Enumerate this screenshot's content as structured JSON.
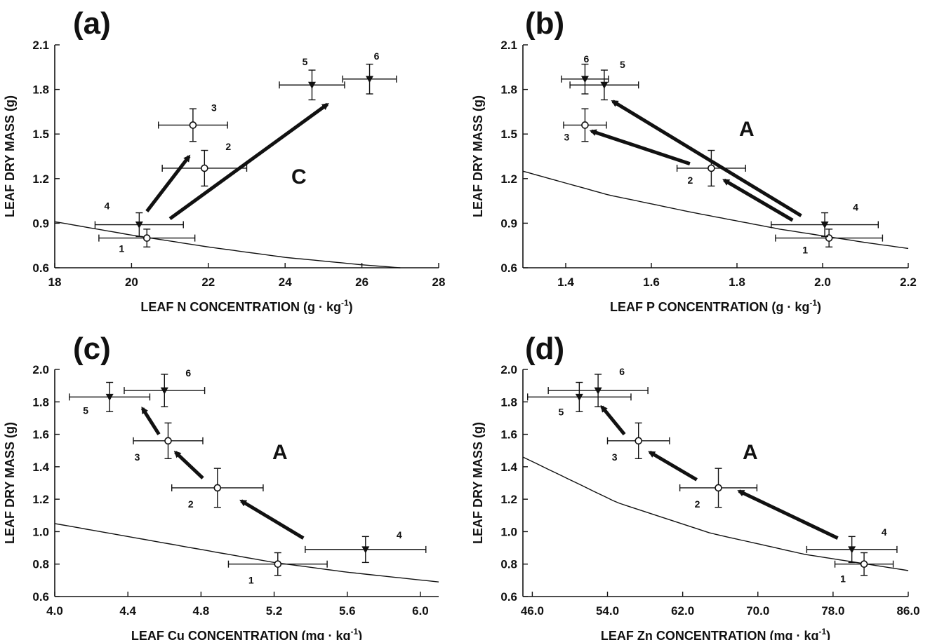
{
  "chart_data": [
    {
      "type": "scatter",
      "panel": "(a)",
      "xlabel": "LEAF N CONCENTRATION (g · kg",
      "xlabel_sup": "-1",
      "xlabel_end": ")",
      "ylabel": "LEAF DRY MASS (g)",
      "xlim": [
        18,
        28
      ],
      "ylim": [
        0.6,
        2.1
      ],
      "xticks": [
        "18",
        "20",
        "22",
        "24",
        "26",
        "28"
      ],
      "yticks": [
        "0.6",
        "0.9",
        "1.2",
        "1.5",
        "1.8",
        "2.1"
      ],
      "region_letter": "C",
      "points": [
        {
          "label": "1",
          "x": 20.4,
          "y": 0.8,
          "xerr": 1.25,
          "yerr": 0.06,
          "marker": "open-circle"
        },
        {
          "label": "2",
          "x": 21.9,
          "y": 1.27,
          "xerr": 1.1,
          "yerr": 0.12,
          "marker": "open-circle"
        },
        {
          "label": "3",
          "x": 21.6,
          "y": 1.56,
          "xerr": 0.9,
          "yerr": 0.11,
          "marker": "open-circle"
        },
        {
          "label": "4",
          "x": 20.2,
          "y": 0.89,
          "xerr": 1.15,
          "yerr": 0.08,
          "marker": "filled-triangle"
        },
        {
          "label": "5",
          "x": 24.7,
          "y": 1.83,
          "xerr": 0.85,
          "yerr": 0.1,
          "marker": "filled-triangle"
        },
        {
          "label": "6",
          "x": 26.2,
          "y": 1.87,
          "xerr": 0.7,
          "yerr": 0.1,
          "marker": "filled-triangle"
        }
      ],
      "curve": {
        "x": [
          18,
          20,
          22,
          24,
          26,
          27
        ],
        "y": [
          0.91,
          0.82,
          0.74,
          0.67,
          0.62,
          0.6
        ]
      },
      "arrows": [
        {
          "from": [
            20.4,
            0.98
          ],
          "to": [
            21.5,
            1.35
          ]
        },
        {
          "from": [
            21.0,
            0.93
          ],
          "to": [
            25.1,
            1.7
          ]
        }
      ]
    },
    {
      "type": "scatter",
      "panel": "(b)",
      "xlabel": "LEAF P CONCENTRATION (g · kg",
      "xlabel_sup": "-1",
      "xlabel_end": ")",
      "ylabel": "LEAF DRY MASS (g)",
      "xlim": [
        1.3,
        2.2
      ],
      "ylim": [
        0.6,
        2.1
      ],
      "xticks": [
        "1.4",
        "1.6",
        "1.8",
        "2.0",
        "2.2"
      ],
      "yticks": [
        "0.6",
        "0.9",
        "1.2",
        "1.5",
        "1.8",
        "2.1"
      ],
      "region_letter": "A",
      "points": [
        {
          "label": "1",
          "x": 2.015,
          "y": 0.8,
          "xerr": 0.125,
          "yerr": 0.06,
          "marker": "open-circle"
        },
        {
          "label": "2",
          "x": 1.74,
          "y": 1.27,
          "xerr": 0.08,
          "yerr": 0.12,
          "marker": "open-circle"
        },
        {
          "label": "3",
          "x": 1.445,
          "y": 1.56,
          "xerr": 0.05,
          "yerr": 0.11,
          "marker": "open-circle"
        },
        {
          "label": "4",
          "x": 2.005,
          "y": 0.89,
          "xerr": 0.125,
          "yerr": 0.08,
          "marker": "filled-triangle"
        },
        {
          "label": "5",
          "x": 1.49,
          "y": 1.83,
          "xerr": 0.08,
          "yerr": 0.1,
          "marker": "filled-triangle"
        },
        {
          "label": "6",
          "x": 1.445,
          "y": 1.87,
          "xerr": 0.055,
          "yerr": 0.1,
          "marker": "filled-triangle"
        }
      ],
      "curve": {
        "x": [
          1.3,
          1.5,
          1.7,
          1.9,
          2.1,
          2.2
        ],
        "y": [
          1.25,
          1.09,
          0.97,
          0.86,
          0.77,
          0.73
        ]
      },
      "arrows": [
        {
          "from": [
            1.69,
            1.3
          ],
          "to": [
            1.46,
            1.52
          ]
        },
        {
          "from": [
            1.95,
            0.95
          ],
          "to": [
            1.51,
            1.72
          ]
        },
        {
          "from": [
            1.93,
            0.92
          ],
          "to": [
            1.77,
            1.19
          ]
        }
      ]
    },
    {
      "type": "scatter",
      "panel": "(c)",
      "xlabel": "LEAF Cu CONCENTRATION (mg · kg",
      "xlabel_sup": "-1",
      "xlabel_end": ")",
      "ylabel": "LEAF DRY MASS (g)",
      "xlim": [
        4.0,
        6.1
      ],
      "ylim": [
        0.6,
        2.0
      ],
      "xticks": [
        "4.0",
        "4.4",
        "4.8",
        "5.2",
        "5.6",
        "6.0"
      ],
      "yticks": [
        "0.6",
        "0.8",
        "1.0",
        "1.2",
        "1.4",
        "1.6",
        "1.8",
        "2.0"
      ],
      "region_letter": "A",
      "points": [
        {
          "label": "1",
          "x": 5.22,
          "y": 0.8,
          "xerr": 0.27,
          "yerr": 0.07,
          "marker": "open-circle"
        },
        {
          "label": "2",
          "x": 4.89,
          "y": 1.27,
          "xerr": 0.25,
          "yerr": 0.12,
          "marker": "open-circle"
        },
        {
          "label": "3",
          "x": 4.62,
          "y": 1.56,
          "xerr": 0.19,
          "yerr": 0.11,
          "marker": "open-circle"
        },
        {
          "label": "4",
          "x": 5.7,
          "y": 0.89,
          "xerr": 0.33,
          "yerr": 0.08,
          "marker": "filled-triangle"
        },
        {
          "label": "5",
          "x": 4.3,
          "y": 1.83,
          "xerr": 0.22,
          "yerr": 0.09,
          "marker": "filled-triangle"
        },
        {
          "label": "6",
          "x": 4.6,
          "y": 1.87,
          "xerr": 0.22,
          "yerr": 0.1,
          "marker": "filled-triangle"
        }
      ],
      "curve": {
        "x": [
          4.0,
          4.4,
          4.8,
          5.2,
          5.6,
          6.1
        ],
        "y": [
          1.05,
          0.97,
          0.89,
          0.81,
          0.75,
          0.69
        ]
      },
      "arrows": [
        {
          "from": [
            5.36,
            0.96
          ],
          "to": [
            5.02,
            1.19
          ]
        },
        {
          "from": [
            4.81,
            1.33
          ],
          "to": [
            4.66,
            1.49
          ]
        },
        {
          "from": [
            4.57,
            1.6
          ],
          "to": [
            4.48,
            1.76
          ]
        }
      ]
    },
    {
      "type": "scatter",
      "panel": "(d)",
      "xlabel": "LEAF Zn CONCENTRATION (mg · kg",
      "xlabel_sup": "-1",
      "xlabel_end": ")",
      "ylabel": "LEAF DRY MASS (g)",
      "xlim": [
        45,
        86
      ],
      "ylim": [
        0.6,
        2.0
      ],
      "xticks": [
        "46.0",
        "54.0",
        "62.0",
        "70.0",
        "78.0",
        "86.0"
      ],
      "yticks": [
        "0.6",
        "0.8",
        "1.0",
        "1.2",
        "1.4",
        "1.6",
        "1.8",
        "2.0"
      ],
      "region_letter": "A",
      "points": [
        {
          "label": "1",
          "x": 81.3,
          "y": 0.8,
          "xerr": 3.1,
          "yerr": 0.07,
          "marker": "open-circle"
        },
        {
          "label": "2",
          "x": 65.8,
          "y": 1.27,
          "xerr": 4.1,
          "yerr": 0.12,
          "marker": "open-circle"
        },
        {
          "label": "3",
          "x": 57.3,
          "y": 1.56,
          "xerr": 3.3,
          "yerr": 0.11,
          "marker": "open-circle"
        },
        {
          "label": "4",
          "x": 80.0,
          "y": 0.89,
          "xerr": 4.8,
          "yerr": 0.08,
          "marker": "filled-triangle"
        },
        {
          "label": "5",
          "x": 51.0,
          "y": 1.83,
          "xerr": 5.5,
          "yerr": 0.09,
          "marker": "filled-triangle"
        },
        {
          "label": "6",
          "x": 53.0,
          "y": 1.87,
          "xerr": 5.3,
          "yerr": 0.1,
          "marker": "filled-triangle"
        }
      ],
      "curve": {
        "x": [
          45,
          55,
          65,
          75,
          86
        ],
        "y": [
          1.46,
          1.18,
          0.99,
          0.86,
          0.76
        ]
      },
      "arrows": [
        {
          "from": [
            78.5,
            0.96
          ],
          "to": [
            68.0,
            1.25
          ]
        },
        {
          "from": [
            63.5,
            1.32
          ],
          "to": [
            58.5,
            1.49
          ]
        },
        {
          "from": [
            55.8,
            1.6
          ],
          "to": [
            53.4,
            1.77
          ]
        }
      ]
    }
  ]
}
